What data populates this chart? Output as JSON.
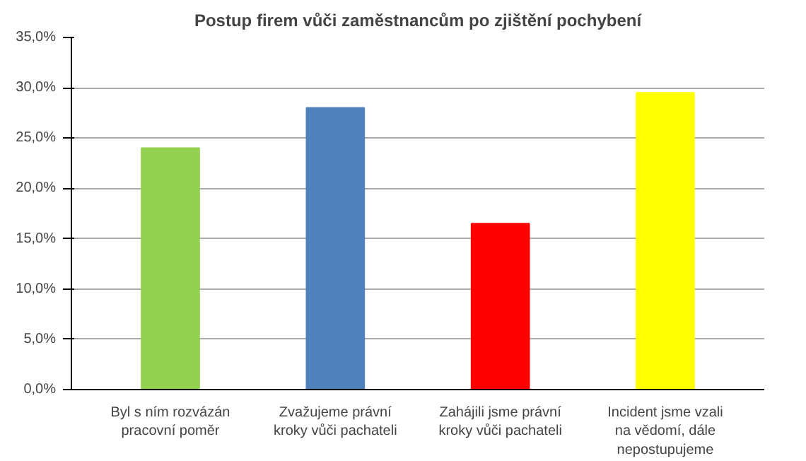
{
  "chart_data": {
    "type": "bar",
    "title": "Postup firem vůči zaměstnancům po zjištění pochybení",
    "categories": [
      "Byl s ním rozvázán pracovní poměr",
      "Zvažujeme právní kroky vůči pachateli",
      "Zahájili jsme právní kroky vůči pachateli",
      "Incident jsme vzali na vědomí, dále nepostupujeme"
    ],
    "values": [
      24,
      28,
      16.5,
      29.5
    ],
    "colors": [
      "#92d050",
      "#4f81bd",
      "#ff0000",
      "#ffff00"
    ],
    "ylim": [
      0,
      35
    ],
    "yticks": [
      {
        "value": 0,
        "label": "0,0%"
      },
      {
        "value": 5,
        "label": "5,0%"
      },
      {
        "value": 10,
        "label": "10,0%"
      },
      {
        "value": 15,
        "label": "15,0%"
      },
      {
        "value": 20,
        "label": "20,0%"
      },
      {
        "value": 25,
        "label": "25,0%"
      },
      {
        "value": 30,
        "label": "30,0%"
      },
      {
        "value": 35,
        "label": "35,0%"
      }
    ],
    "grid": "y"
  }
}
